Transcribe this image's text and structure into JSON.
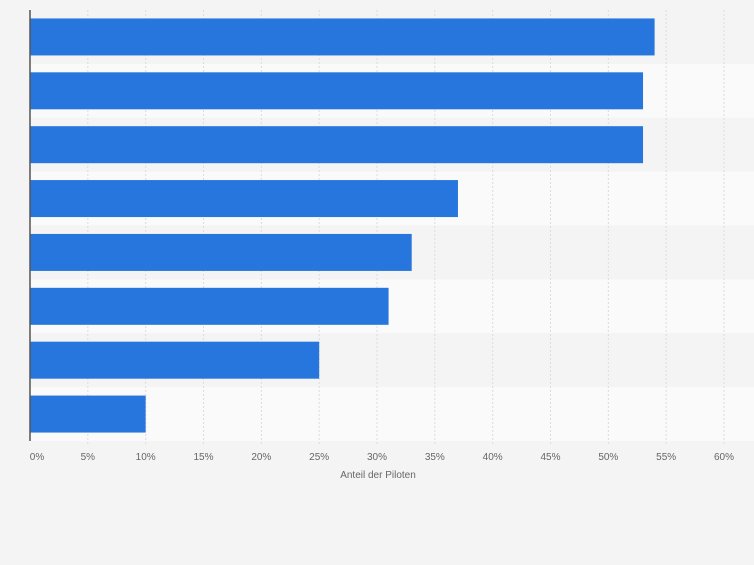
{
  "chart_data": {
    "type": "bar",
    "orientation": "horizontal",
    "categories": [
      "",
      "",
      "",
      "",
      "",
      "",
      "",
      ""
    ],
    "values": [
      54,
      53,
      53,
      37,
      33,
      31,
      25,
      10
    ],
    "xlabel": "Anteil der Piloten",
    "ylabel": "",
    "xlim": [
      0,
      60
    ],
    "x_ticks": [
      "0%",
      "5%",
      "10%",
      "15%",
      "20%",
      "25%",
      "30%",
      "35%",
      "40%",
      "45%",
      "50%",
      "55%",
      "60%"
    ],
    "grid": true,
    "legend": "none",
    "colors": {
      "bar": "#2776dd",
      "background": "#f4f4f4",
      "band_light": "#fafafa",
      "band_dark": "#f4f4f4",
      "grid": "#dcdcdc",
      "axis": "#555555",
      "tick_text": "#666666"
    }
  }
}
